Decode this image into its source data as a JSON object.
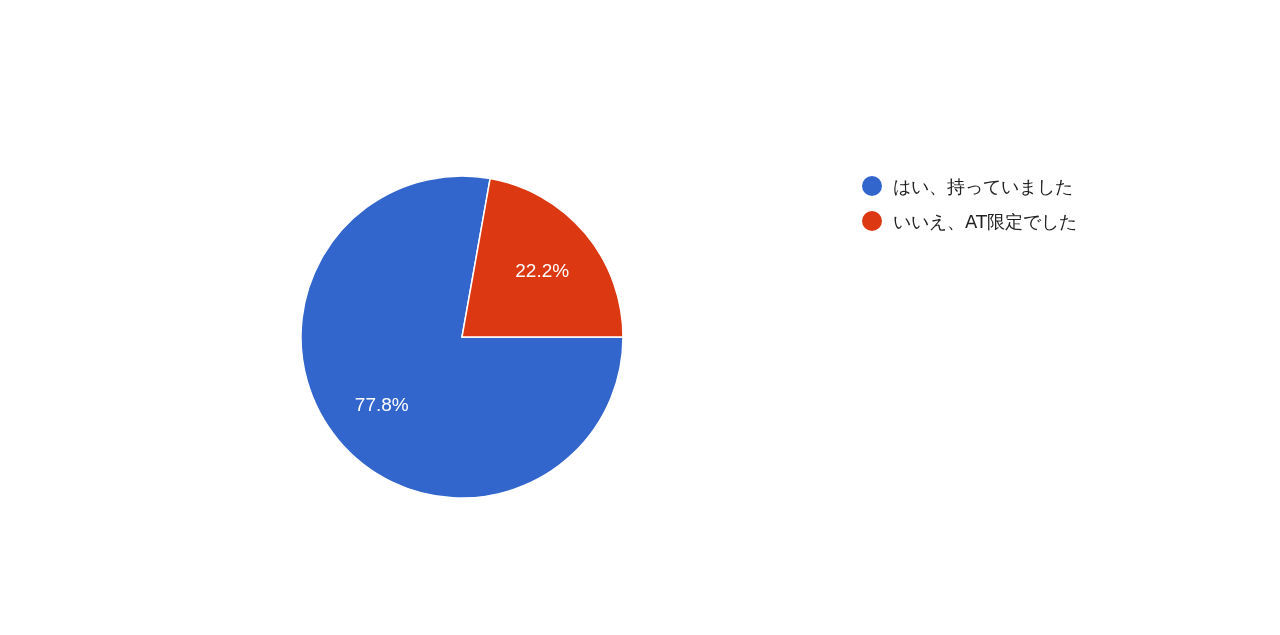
{
  "chart_data": {
    "type": "pie",
    "categories": [
      "はい、持っていました",
      "いいえ、AT限定でした"
    ],
    "values": [
      77.8,
      22.2
    ],
    "colors": [
      "#3366cc",
      "#dc3912"
    ],
    "value_labels": [
      "77.8%",
      "22.2%"
    ],
    "legend": "right"
  }
}
